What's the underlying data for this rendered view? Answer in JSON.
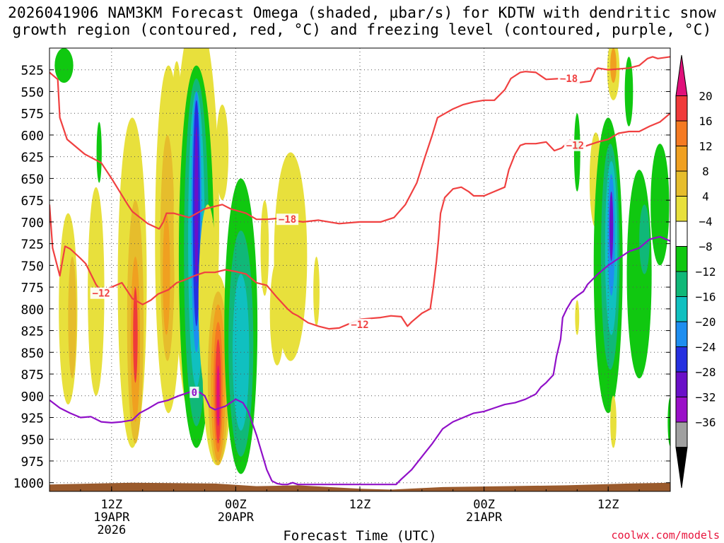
{
  "chart_data": {
    "type": "heatmap",
    "title_line1": "2026041906 NAM3KM Forecast Omega (shaded, μbar/s) for KDTW with dendritic snow",
    "title_line2": "growth region (contoured, red, °C) and freezing level (contoured, purple, °C)",
    "xlabel": "Forecast Time (UTC)",
    "credit": "coolwx.com/models",
    "x_range_hours": [
      0,
      60
    ],
    "x_ticks": [
      {
        "hour": 6,
        "l1": "12Z",
        "l2": "19APR",
        "l3": "2026"
      },
      {
        "hour": 18,
        "l1": "00Z",
        "l2": "20APR",
        "l3": ""
      },
      {
        "hour": 30,
        "l1": "12Z",
        "l2": "",
        "l3": ""
      },
      {
        "hour": 42,
        "l1": "00Z",
        "l2": "21APR",
        "l3": ""
      },
      {
        "hour": 54,
        "l1": "12Z",
        "l2": "",
        "l3": ""
      }
    ],
    "y_range_hpa": [
      1010,
      500
    ],
    "y_ticks": [
      525,
      550,
      575,
      600,
      625,
      650,
      675,
      700,
      725,
      750,
      775,
      800,
      825,
      850,
      875,
      900,
      925,
      950,
      975,
      1000
    ],
    "colorbar": {
      "labels": [
        "20",
        "16",
        "12",
        "8",
        "4",
        "−4",
        "−8",
        "−12",
        "−16",
        "−20",
        "−24",
        "−28",
        "−32",
        "−36"
      ],
      "colors": [
        "#e0107a",
        "#f03a3a",
        "#f57a22",
        "#f0a020",
        "#e6bd2c",
        "#e8e03c",
        "#ffffff",
        "#10c810",
        "#10b878",
        "#10c0c0",
        "#1e8ef0",
        "#2630e0",
        "#6a10c8",
        "#9a10c8",
        "#a0a0a0",
        "#000000"
      ]
    },
    "contour_labels": {
      "m18": "−18",
      "m12": "−12",
      "zero": "0"
    },
    "series": [
      {
        "name": "-18C",
        "color": "#f04040",
        "points": [
          [
            0,
            528
          ],
          [
            0.8,
            536
          ],
          [
            1,
            580
          ],
          [
            1.7,
            605
          ],
          [
            3.4,
            622
          ],
          [
            5,
            632
          ],
          [
            6,
            650
          ],
          [
            7.5,
            679
          ],
          [
            8,
            688
          ],
          [
            9.5,
            702
          ],
          [
            10.6,
            708
          ],
          [
            11,
            700
          ],
          [
            11.3,
            690
          ],
          [
            12,
            690
          ],
          [
            13.5,
            695
          ],
          [
            15,
            685
          ],
          [
            16.7,
            680
          ],
          [
            17.5,
            685
          ],
          [
            19,
            690
          ],
          [
            20,
            697
          ],
          [
            21,
            697
          ],
          [
            22,
            696
          ],
          [
            24.5,
            700
          ],
          [
            26,
            698
          ],
          [
            28,
            702
          ],
          [
            30,
            700
          ],
          [
            32,
            700
          ],
          [
            33.3,
            695
          ],
          [
            34.4,
            680
          ],
          [
            35.5,
            655
          ],
          [
            36.3,
            625
          ],
          [
            37,
            600
          ],
          [
            37.5,
            580
          ],
          [
            39,
            570
          ],
          [
            40,
            565
          ],
          [
            41,
            562
          ],
          [
            42,
            560
          ],
          [
            43,
            560
          ],
          [
            44,
            548
          ],
          [
            44.6,
            535
          ],
          [
            45.5,
            528
          ],
          [
            46,
            527
          ],
          [
            47,
            528
          ],
          [
            48,
            536
          ],
          [
            49.5,
            535
          ],
          [
            51,
            540
          ],
          [
            52.3,
            538
          ],
          [
            52.8,
            525
          ],
          [
            53,
            523
          ],
          [
            54,
            525
          ],
          [
            56,
            523
          ],
          [
            57,
            520
          ],
          [
            57.8,
            512
          ],
          [
            58.3,
            510
          ],
          [
            58.8,
            512
          ],
          [
            60,
            510
          ]
        ]
      },
      {
        "name": "-12C",
        "color": "#f04040",
        "points": [
          [
            0,
            680
          ],
          [
            0.3,
            730
          ],
          [
            1,
            762
          ],
          [
            1.5,
            728
          ],
          [
            2,
            731
          ],
          [
            3,
            742
          ],
          [
            3.5,
            748
          ],
          [
            4,
            760
          ],
          [
            4.5,
            772
          ],
          [
            5,
            780
          ],
          [
            6,
            775
          ],
          [
            7,
            770
          ],
          [
            8,
            788
          ],
          [
            9,
            795
          ],
          [
            9.8,
            790
          ],
          [
            10.5,
            783
          ],
          [
            11.5,
            778
          ],
          [
            12.3,
            770
          ],
          [
            13,
            767
          ],
          [
            14,
            762
          ],
          [
            15,
            758
          ],
          [
            16,
            758
          ],
          [
            17,
            755
          ],
          [
            18,
            757
          ],
          [
            19,
            760
          ],
          [
            20,
            770
          ],
          [
            21,
            773
          ],
          [
            22,
            787
          ],
          [
            23,
            800
          ],
          [
            23.5,
            805
          ],
          [
            24,
            808
          ],
          [
            25,
            816
          ],
          [
            26,
            820
          ],
          [
            27,
            823
          ],
          [
            28,
            822
          ],
          [
            29,
            817
          ],
          [
            30,
            812
          ],
          [
            31,
            811
          ],
          [
            32,
            810
          ],
          [
            33,
            808
          ],
          [
            34,
            809
          ],
          [
            34.6,
            820
          ],
          [
            35,
            815
          ],
          [
            36,
            805
          ],
          [
            36.8,
            800
          ],
          [
            37.1,
            775
          ],
          [
            37.4,
            745
          ],
          [
            37.6,
            720
          ],
          [
            37.8,
            690
          ],
          [
            38.2,
            672
          ],
          [
            39,
            662
          ],
          [
            39.8,
            660
          ],
          [
            40.5,
            665
          ],
          [
            41,
            670
          ],
          [
            42,
            670
          ],
          [
            43,
            665
          ],
          [
            44,
            660
          ],
          [
            44.4,
            640
          ],
          [
            45,
            622
          ],
          [
            45.5,
            612
          ],
          [
            46,
            610
          ],
          [
            47,
            610
          ],
          [
            48,
            608
          ],
          [
            48.8,
            618
          ],
          [
            49.5,
            615
          ],
          [
            50.3,
            606
          ],
          [
            51,
            610
          ],
          [
            51.8,
            613
          ],
          [
            52,
            612
          ],
          [
            53,
            608
          ],
          [
            54,
            605
          ],
          [
            55,
            598
          ],
          [
            56,
            596
          ],
          [
            57,
            596
          ],
          [
            58,
            590
          ],
          [
            59,
            585
          ],
          [
            60,
            575
          ]
        ]
      },
      {
        "name": "0C",
        "color": "#9010c8",
        "points": [
          [
            0,
            905
          ],
          [
            1,
            914
          ],
          [
            2,
            920
          ],
          [
            3,
            925
          ],
          [
            4,
            924
          ],
          [
            5,
            930
          ],
          [
            6,
            931
          ],
          [
            7,
            930
          ],
          [
            8,
            928
          ],
          [
            8.7,
            920
          ],
          [
            9.5,
            915
          ],
          [
            10.5,
            908
          ],
          [
            11.5,
            905
          ],
          [
            12.5,
            900
          ],
          [
            13.5,
            896
          ],
          [
            14.5,
            896
          ],
          [
            15,
            900
          ],
          [
            15.5,
            913
          ],
          [
            16,
            916
          ],
          [
            17,
            912
          ],
          [
            18,
            904
          ],
          [
            18.7,
            908
          ],
          [
            19.2,
            918
          ],
          [
            20,
            945
          ],
          [
            20.5,
            965
          ],
          [
            21,
            985
          ],
          [
            21.5,
            998
          ],
          [
            22,
            1001
          ],
          [
            22.5,
            1002
          ],
          [
            23,
            1002
          ],
          [
            23.5,
            1000
          ],
          [
            24,
            1002
          ],
          [
            33.5,
            1002
          ],
          [
            34,
            996
          ],
          [
            35,
            985
          ],
          [
            36,
            970
          ],
          [
            37,
            955
          ],
          [
            38,
            938
          ],
          [
            39,
            930
          ],
          [
            40,
            925
          ],
          [
            41,
            920
          ],
          [
            42,
            918
          ],
          [
            43,
            914
          ],
          [
            44,
            910
          ],
          [
            45,
            908
          ],
          [
            46,
            904
          ],
          [
            47,
            898
          ],
          [
            47.5,
            890
          ],
          [
            48,
            885
          ],
          [
            48.7,
            876
          ],
          [
            49,
            855
          ],
          [
            49.4,
            835
          ],
          [
            49.6,
            810
          ],
          [
            50,
            800
          ],
          [
            50.5,
            790
          ],
          [
            51,
            785
          ],
          [
            51.6,
            780
          ],
          [
            52,
            772
          ],
          [
            53,
            760
          ],
          [
            54,
            750
          ],
          [
            55,
            742
          ],
          [
            56,
            734
          ],
          [
            57,
            730
          ],
          [
            58,
            720
          ],
          [
            59,
            717
          ],
          [
            60,
            722
          ]
        ]
      }
    ],
    "shaded_blobs": [
      {
        "cx": 1.8,
        "cy": 800,
        "rx": 0.9,
        "ry": 110,
        "c": "#e8e03c"
      },
      {
        "cx": 2.2,
        "cy": 810,
        "rx": 0.4,
        "ry": 70,
        "c": "#e6bd2c"
      },
      {
        "cx": 4.5,
        "cy": 780,
        "rx": 0.8,
        "ry": 120,
        "c": "#e8e03c"
      },
      {
        "cx": 8,
        "cy": 770,
        "rx": 1.4,
        "ry": 190,
        "c": "#e8e03c"
      },
      {
        "cx": 8.3,
        "cy": 815,
        "rx": 0.8,
        "ry": 140,
        "c": "#e6bd2c"
      },
      {
        "cx": 8.3,
        "cy": 835,
        "rx": 0.45,
        "ry": 95,
        "c": "#f0a020"
      },
      {
        "cx": 8.3,
        "cy": 830,
        "rx": 0.22,
        "ry": 55,
        "c": "#f03a3a"
      },
      {
        "cx": 11.5,
        "cy": 720,
        "rx": 1.3,
        "ry": 200,
        "c": "#e8e03c"
      },
      {
        "cx": 11.4,
        "cy": 730,
        "rx": 0.7,
        "ry": 130,
        "c": "#e6bd2c"
      },
      {
        "cx": 11.3,
        "cy": 760,
        "rx": 0.35,
        "ry": 70,
        "c": "#f0a020"
      },
      {
        "cx": 12.3,
        "cy": 590,
        "rx": 0.5,
        "ry": 75,
        "c": "#e8e03c"
      },
      {
        "cx": 13.5,
        "cy": 590,
        "rx": 0.35,
        "ry": 80,
        "c": "#e8e03c"
      },
      {
        "cx": 14.2,
        "cy": 700,
        "rx": 2.2,
        "ry": 240,
        "c": "#e8e03c"
      },
      {
        "cx": 14.2,
        "cy": 740,
        "rx": 1.7,
        "ry": 220,
        "c": "#10c810"
      },
      {
        "cx": 14.2,
        "cy": 735,
        "rx": 1.2,
        "ry": 200,
        "c": "#10b878"
      },
      {
        "cx": 14.2,
        "cy": 720,
        "rx": 0.8,
        "ry": 170,
        "c": "#10c0c0"
      },
      {
        "cx": 14.2,
        "cy": 700,
        "rx": 0.5,
        "ry": 150,
        "c": "#1e8ef0"
      },
      {
        "cx": 14.2,
        "cy": 690,
        "rx": 0.35,
        "ry": 130,
        "c": "#2630e0"
      },
      {
        "cx": 14.2,
        "cy": 680,
        "rx": 0.18,
        "ry": 90,
        "c": "#6a10c8"
      },
      {
        "cx": 15.3,
        "cy": 790,
        "rx": 0.9,
        "ry": 110,
        "c": "#e8e03c"
      },
      {
        "cx": 16.2,
        "cy": 870,
        "rx": 1.4,
        "ry": 110,
        "c": "#e8e03c"
      },
      {
        "cx": 16.3,
        "cy": 880,
        "rx": 1.0,
        "ry": 100,
        "c": "#e6bd2c"
      },
      {
        "cx": 16.3,
        "cy": 885,
        "rx": 0.7,
        "ry": 90,
        "c": "#f0a020"
      },
      {
        "cx": 16.3,
        "cy": 890,
        "rx": 0.45,
        "ry": 75,
        "c": "#f57a22"
      },
      {
        "cx": 16.3,
        "cy": 895,
        "rx": 0.28,
        "ry": 60,
        "c": "#f03a3a"
      },
      {
        "cx": 16.3,
        "cy": 900,
        "rx": 0.14,
        "ry": 35,
        "c": "#e0107a"
      },
      {
        "cx": 16.7,
        "cy": 620,
        "rx": 0.6,
        "ry": 55,
        "c": "#e8e03c"
      },
      {
        "cx": 18.5,
        "cy": 820,
        "rx": 1.6,
        "ry": 170,
        "c": "#10c810"
      },
      {
        "cx": 18.5,
        "cy": 840,
        "rx": 1.2,
        "ry": 130,
        "c": "#10b878"
      },
      {
        "cx": 18.5,
        "cy": 850,
        "rx": 0.8,
        "ry": 90,
        "c": "#10c0c0"
      },
      {
        "cx": 22,
        "cy": 805,
        "rx": 0.7,
        "ry": 60,
        "c": "#e8e03c"
      },
      {
        "cx": 23.3,
        "cy": 740,
        "rx": 1.6,
        "ry": 120,
        "c": "#e8e03c"
      },
      {
        "cx": 20.8,
        "cy": 730,
        "rx": 0.4,
        "ry": 55,
        "c": "#e8e03c"
      },
      {
        "cx": 25.8,
        "cy": 780,
        "rx": 0.3,
        "ry": 40,
        "c": "#e8e03c"
      },
      {
        "cx": 4.8,
        "cy": 620,
        "rx": 0.25,
        "ry": 35,
        "c": "#10c810"
      },
      {
        "cx": 1.4,
        "cy": 520,
        "rx": 0.9,
        "ry": 20,
        "c": "#10c810"
      },
      {
        "cx": 51,
        "cy": 620,
        "rx": 0.3,
        "ry": 45,
        "c": "#10c810"
      },
      {
        "cx": 52.8,
        "cy": 652,
        "rx": 0.6,
        "ry": 55,
        "c": "#e8e03c"
      },
      {
        "cx": 51,
        "cy": 810,
        "rx": 0.2,
        "ry": 20,
        "c": "#e8e03c"
      },
      {
        "cx": 54,
        "cy": 750,
        "rx": 1.4,
        "ry": 170,
        "c": "#10c810"
      },
      {
        "cx": 54.2,
        "cy": 740,
        "rx": 0.9,
        "ry": 130,
        "c": "#10b878"
      },
      {
        "cx": 54.3,
        "cy": 730,
        "rx": 0.6,
        "ry": 100,
        "c": "#10c0c0"
      },
      {
        "cx": 54.3,
        "cy": 715,
        "rx": 0.35,
        "ry": 70,
        "c": "#1e8ef0"
      },
      {
        "cx": 54.3,
        "cy": 705,
        "rx": 0.18,
        "ry": 40,
        "c": "#6a10c8"
      },
      {
        "cx": 54.5,
        "cy": 525,
        "rx": 0.6,
        "ry": 35,
        "c": "#e8e03c"
      },
      {
        "cx": 54.5,
        "cy": 520,
        "rx": 0.3,
        "ry": 20,
        "c": "#f0a020"
      },
      {
        "cx": 56,
        "cy": 550,
        "rx": 0.4,
        "ry": 40,
        "c": "#10c810"
      },
      {
        "cx": 57,
        "cy": 760,
        "rx": 1.2,
        "ry": 120,
        "c": "#10c810"
      },
      {
        "cx": 57.5,
        "cy": 720,
        "rx": 0.5,
        "ry": 40,
        "c": "#10b878"
      },
      {
        "cx": 59,
        "cy": 680,
        "rx": 0.9,
        "ry": 70,
        "c": "#10c810"
      },
      {
        "cx": 60,
        "cy": 930,
        "rx": 0.25,
        "ry": 28,
        "c": "#10c810"
      },
      {
        "cx": 54.5,
        "cy": 930,
        "rx": 0.3,
        "ry": 30,
        "c": "#e8e03c"
      }
    ]
  }
}
